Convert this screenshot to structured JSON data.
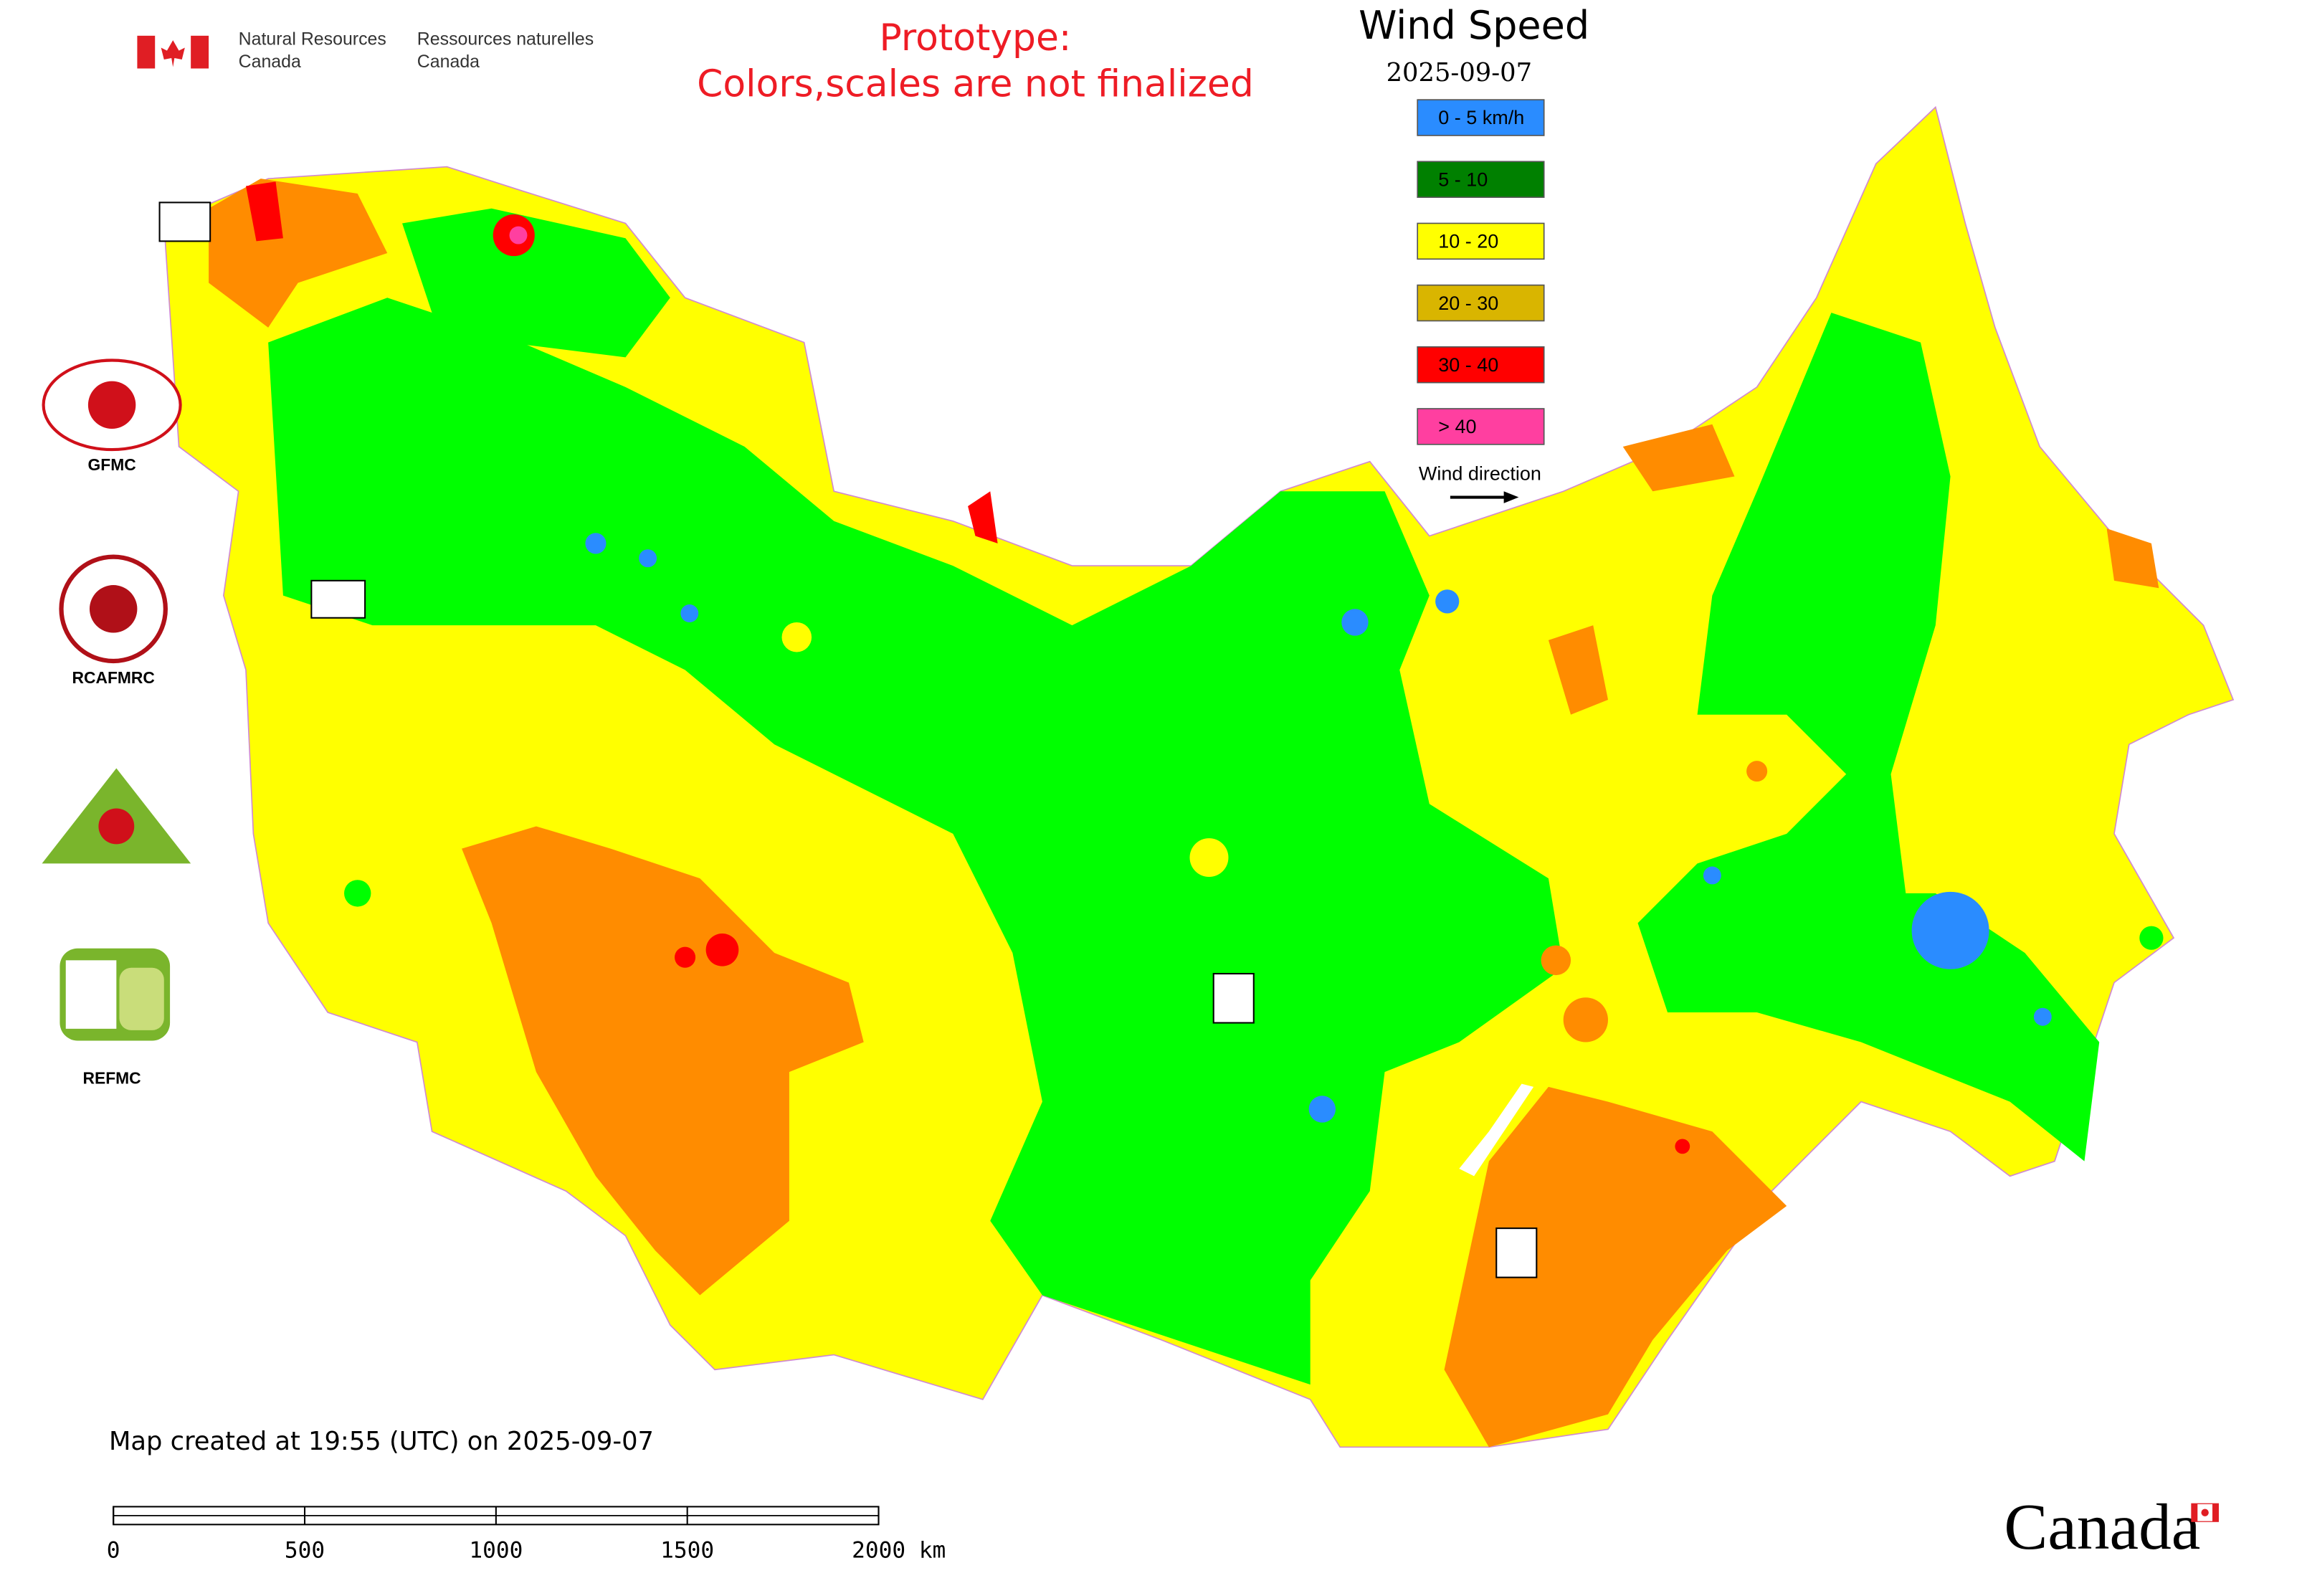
{
  "header": {
    "agency_en": [
      "Natural Resources",
      "Canada"
    ],
    "agency_fr": [
      "Ressources naturelles",
      "Canada"
    ],
    "notice": [
      "Prototype:",
      "Colors,scales are not finalized"
    ]
  },
  "legend": {
    "title": "Wind Speed",
    "date": "2025-09-07",
    "items": [
      {
        "label": "0 - 5 km/h",
        "color": "#2a8cff"
      },
      {
        "label": "5 - 10",
        "color": "#008000"
      },
      {
        "label": "10 - 20",
        "color": "#ffff00"
      },
      {
        "label": "20 - 30",
        "color": "#d9b500"
      },
      {
        "label": "30 - 40",
        "color": "#ff0000"
      },
      {
        "label": "> 40",
        "color": "#ff3fa0"
      }
    ],
    "wind_direction": "Wind direction"
  },
  "logos": [
    "GFMC",
    "RCAFMRC",
    "REFMC"
  ],
  "footer": {
    "created": "Map created at 19:55 (UTC) on 2025-09-07",
    "scale_labels": [
      "0",
      "500",
      "1000",
      "1500",
      "2000 km"
    ],
    "wordmark": "Canada"
  }
}
